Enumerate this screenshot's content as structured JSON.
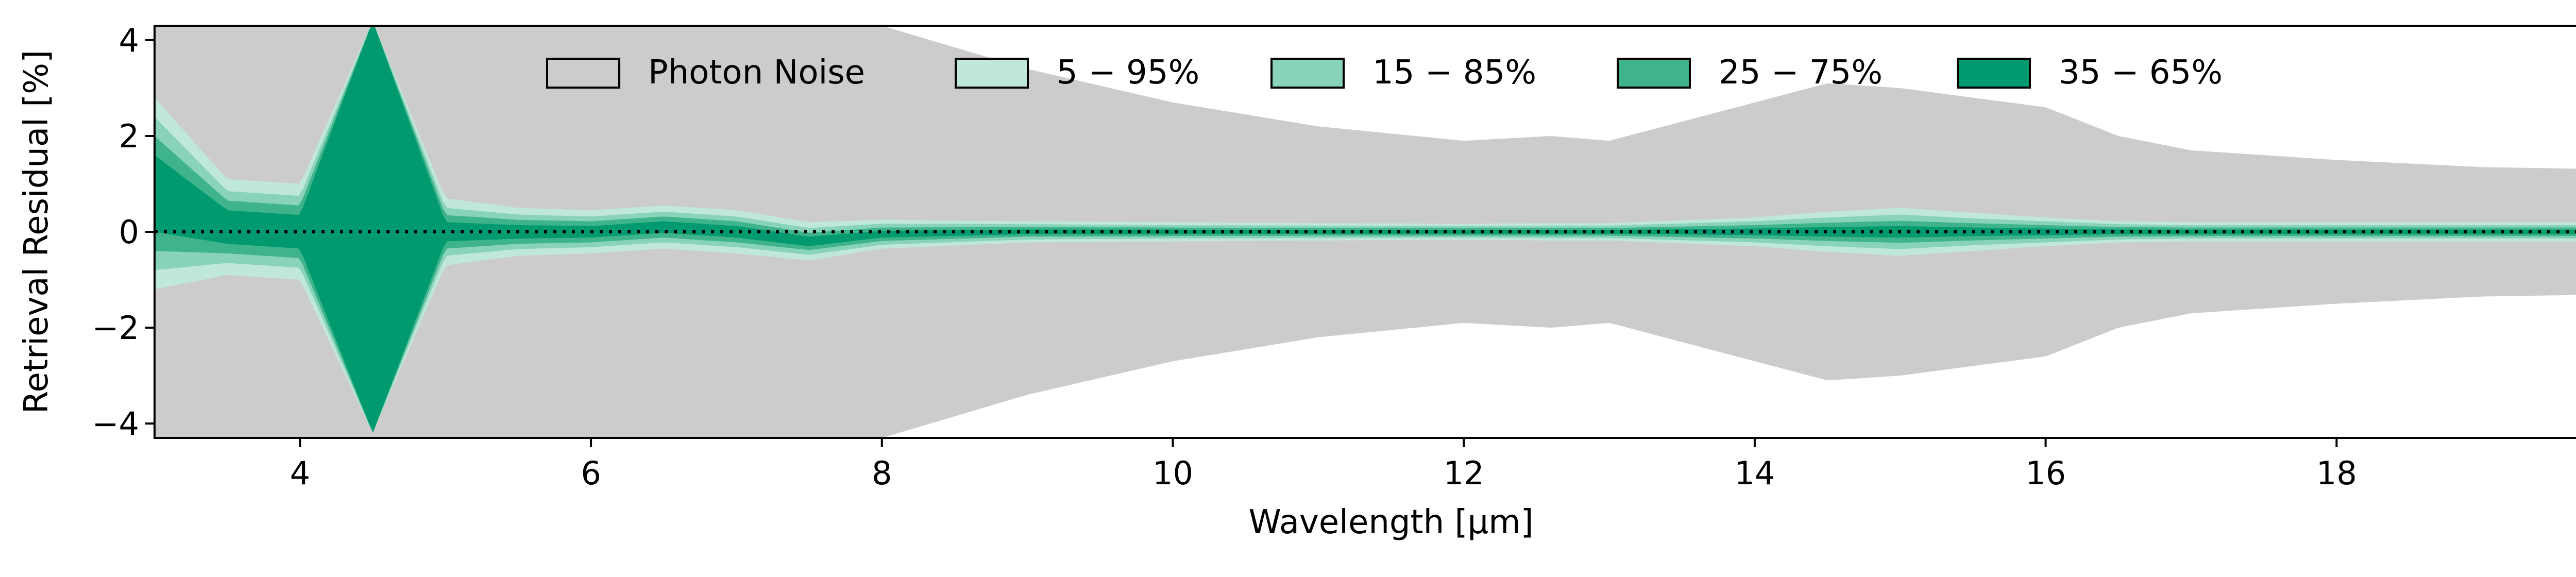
{
  "chart_data": {
    "type": "area",
    "title": "",
    "xlabel": "Wavelength [μm]",
    "ylabel": "Retrieval Residual [%]",
    "xlim": [
      3.0,
      20.0
    ],
    "ylim": [
      -4.3,
      4.3
    ],
    "xticks": [
      4,
      6,
      8,
      10,
      12,
      14,
      16,
      18
    ],
    "xtick_labels": [
      "4",
      "6",
      "8",
      "10",
      "12",
      "14",
      "16",
      "18"
    ],
    "yticks": [
      -4,
      -2,
      0,
      2,
      4
    ],
    "ytick_labels": [
      "−4",
      "−2",
      "0",
      "2",
      "4"
    ],
    "grid": false,
    "legend_position": "top-center",
    "reference_line": {
      "y": 0,
      "style": "dotted",
      "color": "#000000"
    },
    "legend": [
      {
        "label": "Photon Noise",
        "color": "#cccccc"
      },
      {
        "label": "5 − 95%",
        "color": "#bfe8da"
      },
      {
        "label": "15 − 85%",
        "color": "#8ad3bb"
      },
      {
        "label": "25 − 75%",
        "color": "#3fb48c"
      },
      {
        "label": "35 − 65%",
        "color": "#009a6e"
      }
    ],
    "x": [
      3.0,
      3.5,
      4.0,
      4.5,
      5.0,
      5.5,
      6.0,
      6.5,
      7.0,
      7.5,
      8.0,
      9.0,
      10.0,
      11.0,
      12.0,
      12.6,
      13.0,
      14.0,
      14.5,
      15.0,
      15.5,
      16.0,
      16.5,
      17.0,
      18.0,
      19.0,
      20.0
    ],
    "photon_noise": [
      4.3,
      4.3,
      4.3,
      4.3,
      4.3,
      4.3,
      4.3,
      4.3,
      4.3,
      4.3,
      4.3,
      3.4,
      2.7,
      2.2,
      1.9,
      2.0,
      1.9,
      2.7,
      3.1,
      3.0,
      2.8,
      2.6,
      2.0,
      1.7,
      1.5,
      1.35,
      1.3
    ],
    "series": [
      {
        "name": "5 − 95%",
        "values": [
          2.0,
          1.0,
          1.0,
          4.3,
          0.7,
          0.5,
          0.45,
          0.45,
          0.45,
          0.4,
          0.3,
          0.22,
          0.2,
          0.18,
          0.17,
          0.18,
          0.18,
          0.3,
          0.42,
          0.5,
          0.4,
          0.3,
          0.22,
          0.2,
          0.2,
          0.2,
          0.2
        ]
      },
      {
        "name": "15 − 85%",
        "values": [
          1.6,
          0.75,
          0.75,
          4.3,
          0.5,
          0.36,
          0.32,
          0.32,
          0.32,
          0.28,
          0.22,
          0.16,
          0.14,
          0.13,
          0.12,
          0.13,
          0.13,
          0.22,
          0.3,
          0.36,
          0.28,
          0.22,
          0.16,
          0.14,
          0.14,
          0.14,
          0.14
        ]
      },
      {
        "name": "25 − 75%",
        "values": [
          1.2,
          0.55,
          0.55,
          4.3,
          0.35,
          0.25,
          0.22,
          0.22,
          0.22,
          0.18,
          0.14,
          0.1,
          0.09,
          0.08,
          0.08,
          0.08,
          0.08,
          0.14,
          0.19,
          0.23,
          0.18,
          0.14,
          0.1,
          0.09,
          0.09,
          0.09,
          0.09
        ]
      },
      {
        "name": "35 − 65%",
        "values": [
          0.8,
          0.35,
          0.35,
          4.3,
          0.2,
          0.14,
          0.12,
          0.12,
          0.12,
          0.1,
          0.07,
          0.05,
          0.045,
          0.04,
          0.04,
          0.04,
          0.04,
          0.07,
          0.1,
          0.12,
          0.09,
          0.07,
          0.05,
          0.045,
          0.045,
          0.045,
          0.045
        ]
      }
    ],
    "center_offset": [
      0.8,
      0.1,
      0.0,
      0.1,
      0.0,
      0.0,
      0.0,
      0.1,
      0.0,
      -0.2,
      -0.05,
      0.0,
      0.0,
      0.0,
      0.0,
      0.0,
      0.0,
      0.0,
      0.0,
      0.0,
      0.0,
      0.0,
      0.0,
      0.0,
      0.0,
      0.0,
      0.0
    ]
  }
}
